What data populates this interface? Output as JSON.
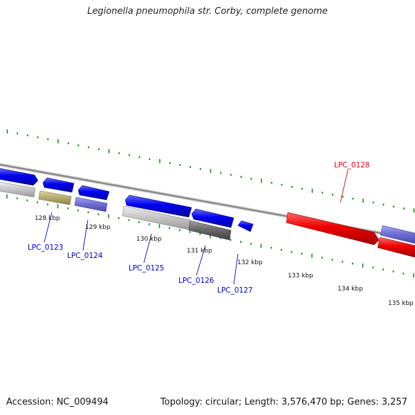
{
  "title": "Legionella pneumophila str. Corby, complete genome",
  "footer": {
    "accession": "Accession: NC_009494",
    "summary": "Topology: circular; Length: 3,576,470 bp; Genes: 3,257"
  },
  "colors": {
    "backbone": "#8a8a8a",
    "ticks": "#1a8a1a",
    "forward_gene": "#0000ee",
    "highlight_gene": "#ee0000",
    "purple_gene": "#7070d8",
    "olive_gene": "#b8b070",
    "grey_gene": "#c8c8c8",
    "dark_grey_gene": "#6a6a6a",
    "label_blue": "#0000cc",
    "label_red": "#dd0000"
  },
  "scale_labels": [
    "128 kbp",
    "129 kbp",
    "130 kbp",
    "131 kbp",
    "132 kbp",
    "133 kbp",
    "134 kbp",
    "135 kbp"
  ],
  "gene_labels": [
    {
      "name": "LPC_0123",
      "color": "blue"
    },
    {
      "name": "LPC_0124",
      "color": "blue"
    },
    {
      "name": "LPC_0125",
      "color": "blue"
    },
    {
      "name": "LPC_0126",
      "color": "blue"
    },
    {
      "name": "LPC_0127",
      "color": "blue"
    },
    {
      "name": "LPC_0128",
      "color": "red"
    }
  ]
}
